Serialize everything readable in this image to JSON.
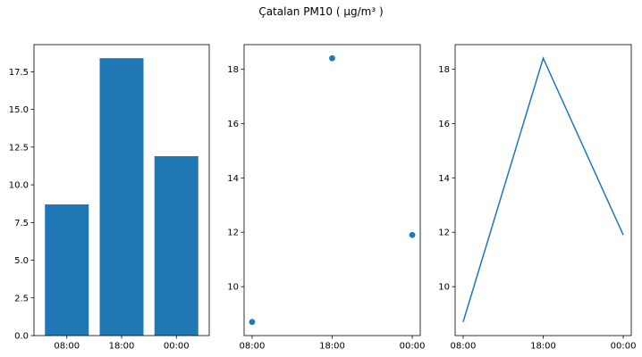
{
  "chart_data": {
    "title": "Çatalan PM10 ( µg/m³ )",
    "color": "#1f77b4",
    "categories": [
      "08:00",
      "18:00",
      "00:00"
    ],
    "values": [
      8.7,
      18.4,
      11.9
    ],
    "panels": [
      {
        "type": "bar",
        "ylim": [
          0,
          19.3
        ],
        "yticks": [
          0.0,
          2.5,
          5.0,
          7.5,
          10.0,
          12.5,
          15.0,
          17.5
        ],
        "ytick_labels": [
          "0.0",
          "2.5",
          "5.0",
          "7.5",
          "10.0",
          "12.5",
          "15.0",
          "17.5"
        ]
      },
      {
        "type": "scatter",
        "ylim": [
          8.2,
          18.9
        ],
        "yticks": [
          10,
          12,
          14,
          16,
          18
        ],
        "ytick_labels": [
          "10",
          "12",
          "14",
          "16",
          "18"
        ]
      },
      {
        "type": "line",
        "ylim": [
          8.2,
          18.9
        ],
        "yticks": [
          10,
          12,
          14,
          16,
          18
        ],
        "ytick_labels": [
          "10",
          "12",
          "14",
          "16",
          "18"
        ]
      }
    ]
  }
}
